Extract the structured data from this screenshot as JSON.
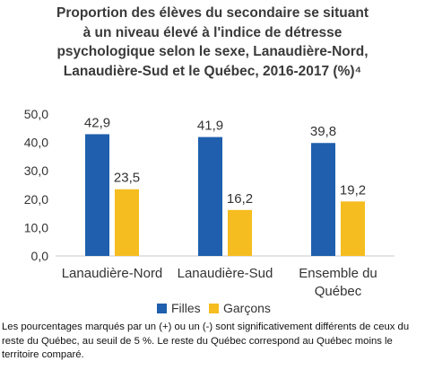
{
  "chart_data": {
    "type": "bar",
    "title_lines": [
      "Proportion des élèves du secondaire se situant",
      "à un niveau élevé à l'indice de détresse",
      "psychologique selon le sexe, Lanaudière-Nord,",
      "Lanaudière-Sud et le Québec, 2016-2017 (%)⁴"
    ],
    "categories": [
      {
        "lines": [
          "Lanaudière-Nord"
        ]
      },
      {
        "lines": [
          "Lanaudière-Sud"
        ]
      },
      {
        "lines": [
          "Ensemble du",
          "Québec"
        ]
      }
    ],
    "series": [
      {
        "name": "Filles",
        "color": "#1f5fad",
        "values": [
          42.9,
          41.9,
          39.8
        ],
        "labels": [
          "42,9",
          "41,9",
          "39,8"
        ]
      },
      {
        "name": "Garçons",
        "color": "#f5bd1f",
        "values": [
          23.5,
          16.2,
          19.2
        ],
        "labels": [
          "23,5",
          "16,2",
          "19,2"
        ]
      }
    ],
    "ylim": [
      0,
      50
    ],
    "yticks": [
      {
        "value": 0,
        "label": "0,0"
      },
      {
        "value": 10,
        "label": "10,0"
      },
      {
        "value": 20,
        "label": "20,0"
      },
      {
        "value": 30,
        "label": "30,0"
      },
      {
        "value": 40,
        "label": "40,0"
      },
      {
        "value": 50,
        "label": "50,0"
      }
    ],
    "grid": false,
    "legend_position": "bottom"
  },
  "footnote": "Les pourcentages marqués par un (+) ou un (-) sont significativement différents de ceux du reste du Québec, au seuil de 5 %. Le reste du Québec correspond au Québec moins le territoire comparé."
}
